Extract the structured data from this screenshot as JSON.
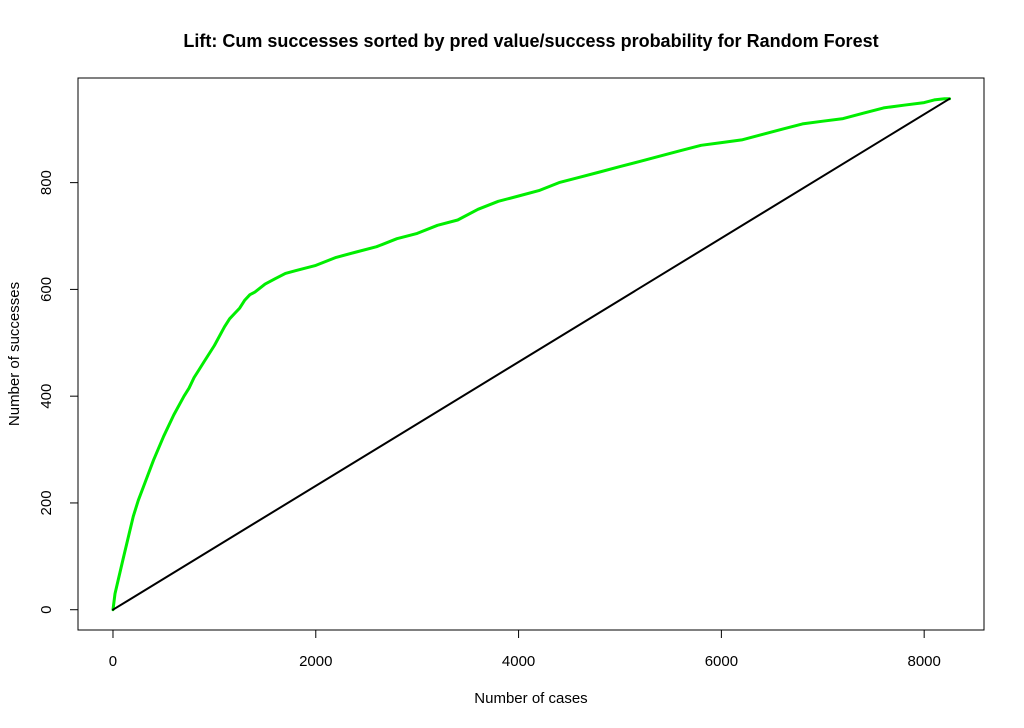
{
  "chart_data": {
    "type": "line",
    "title": "Lift: Cum successes sorted by pred value/success probability for Random Forest",
    "xlabel": "Number of cases",
    "ylabel": "Number of successes",
    "xlim": [
      -345,
      8590
    ],
    "ylim": [
      -38,
      996
    ],
    "x_ticks": [
      0,
      2000,
      4000,
      6000,
      8000
    ],
    "y_ticks": [
      0,
      200,
      400,
      600,
      800
    ],
    "x_tick_labels": [
      "0",
      "2000",
      "4000",
      "6000",
      "8000"
    ],
    "y_tick_labels": [
      "0",
      "200",
      "400",
      "600",
      "800"
    ],
    "grid": false,
    "legend": "none",
    "series": [
      {
        "color": "#00ee00",
        "x": [
          0,
          20,
          50,
          100,
          150,
          200,
          250,
          300,
          400,
          500,
          600,
          700,
          750,
          800,
          850,
          900,
          1000,
          1100,
          1150,
          1200,
          1250,
          1300,
          1350,
          1400,
          1500,
          1600,
          1700,
          1800,
          1900,
          2000,
          2200,
          2400,
          2600,
          2800,
          3000,
          3200,
          3400,
          3600,
          3800,
          4000,
          4200,
          4400,
          4600,
          4800,
          5000,
          5200,
          5400,
          5600,
          5800,
          6000,
          6200,
          6400,
          6600,
          6800,
          7000,
          7200,
          7400,
          7600,
          7800,
          8000,
          8100,
          8200,
          8250
        ],
        "y": [
          0,
          30,
          55,
          95,
          135,
          175,
          205,
          230,
          280,
          325,
          365,
          400,
          415,
          435,
          450,
          465,
          495,
          530,
          545,
          555,
          565,
          580,
          590,
          595,
          610,
          620,
          630,
          635,
          640,
          645,
          660,
          670,
          680,
          695,
          705,
          720,
          730,
          750,
          765,
          775,
          785,
          800,
          810,
          820,
          830,
          840,
          850,
          860,
          870,
          875,
          880,
          890,
          900,
          910,
          915,
          920,
          930,
          940,
          945,
          950,
          955,
          957,
          957
        ]
      },
      {
        "color": "#000000",
        "x": [
          0,
          8250
        ],
        "y": [
          0,
          957
        ]
      }
    ]
  }
}
